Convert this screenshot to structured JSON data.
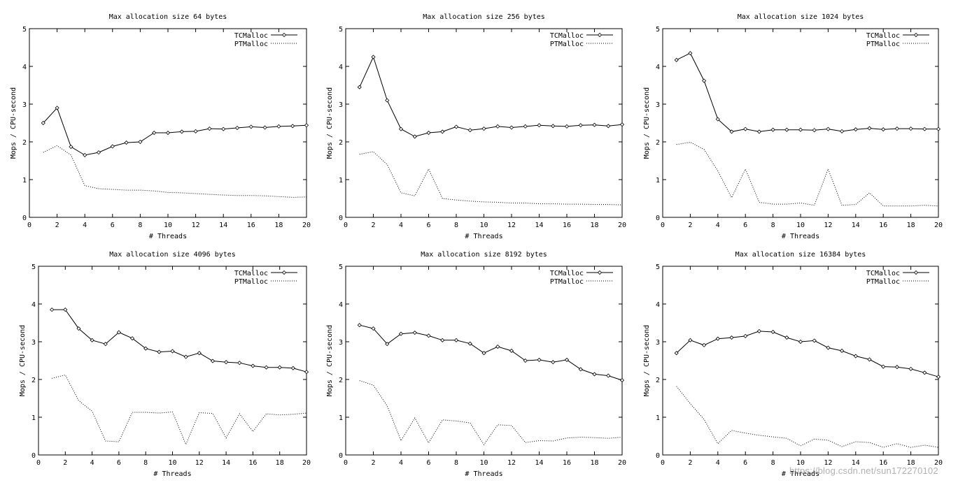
{
  "watermark": "https://blog.csdn.net/sun172270102",
  "chart_data": [
    {
      "type": "line",
      "title": "Max allocation size 64 bytes",
      "xlabel": "# Threads",
      "ylabel": "Mops / CPU-second",
      "xlim": [
        0,
        20
      ],
      "ylim": [
        0,
        5
      ],
      "xticks": [
        0,
        2,
        4,
        6,
        8,
        10,
        12,
        14,
        16,
        18,
        20
      ],
      "yticks": [
        0,
        1,
        2,
        3,
        4,
        5
      ],
      "legend": "top-right",
      "x": [
        1,
        2,
        3,
        4,
        5,
        6,
        7,
        8,
        9,
        10,
        11,
        12,
        13,
        14,
        15,
        16,
        17,
        18,
        19,
        20
      ],
      "series": [
        {
          "name": "TCMalloc",
          "style": "solid-diamond",
          "values": [
            2.5,
            2.9,
            1.87,
            1.65,
            1.72,
            1.88,
            1.98,
            2.0,
            2.24,
            2.24,
            2.27,
            2.28,
            2.35,
            2.34,
            2.37,
            2.4,
            2.38,
            2.41,
            2.42,
            2.44
          ]
        },
        {
          "name": "PTMalloc",
          "style": "dotted",
          "values": [
            1.72,
            1.9,
            1.65,
            0.84,
            0.76,
            0.74,
            0.72,
            0.72,
            0.7,
            0.66,
            0.65,
            0.63,
            0.61,
            0.59,
            0.58,
            0.58,
            0.57,
            0.55,
            0.53,
            0.54
          ]
        }
      ]
    },
    {
      "type": "line",
      "title": "Max allocation size 256 bytes",
      "xlabel": "# Threads",
      "ylabel": "Mops / CPU-second",
      "xlim": [
        0,
        20
      ],
      "ylim": [
        0,
        5
      ],
      "xticks": [
        0,
        2,
        4,
        6,
        8,
        10,
        12,
        14,
        16,
        18,
        20
      ],
      "yticks": [
        0,
        1,
        2,
        3,
        4,
        5
      ],
      "legend": "top-right",
      "x": [
        1,
        2,
        3,
        4,
        5,
        6,
        7,
        8,
        9,
        10,
        11,
        12,
        13,
        14,
        15,
        16,
        17,
        18,
        19,
        20
      ],
      "series": [
        {
          "name": "TCMalloc",
          "style": "solid-diamond",
          "values": [
            3.45,
            4.25,
            3.1,
            2.34,
            2.14,
            2.24,
            2.27,
            2.4,
            2.31,
            2.35,
            2.41,
            2.38,
            2.41,
            2.44,
            2.42,
            2.41,
            2.44,
            2.45,
            2.42,
            2.46
          ]
        },
        {
          "name": "PTMalloc",
          "style": "dotted",
          "values": [
            1.67,
            1.74,
            1.4,
            0.65,
            0.57,
            1.28,
            0.5,
            0.46,
            0.43,
            0.41,
            0.4,
            0.38,
            0.38,
            0.36,
            0.36,
            0.35,
            0.35,
            0.34,
            0.34,
            0.33
          ]
        }
      ]
    },
    {
      "type": "line",
      "title": "Max allocation size 1024 bytes",
      "xlabel": "# Threads",
      "ylabel": "Mops / CPU-second",
      "xlim": [
        0,
        20
      ],
      "ylim": [
        0,
        5
      ],
      "xticks": [
        0,
        2,
        4,
        6,
        8,
        10,
        12,
        14,
        16,
        18,
        20
      ],
      "yticks": [
        0,
        1,
        2,
        3,
        4,
        5
      ],
      "legend": "top-right",
      "x": [
        1,
        2,
        3,
        4,
        5,
        6,
        7,
        8,
        9,
        10,
        11,
        12,
        13,
        14,
        15,
        16,
        17,
        18,
        19,
        20
      ],
      "series": [
        {
          "name": "TCMalloc",
          "style": "solid-diamond",
          "values": [
            4.17,
            4.35,
            3.62,
            2.6,
            2.27,
            2.34,
            2.27,
            2.32,
            2.32,
            2.32,
            2.31,
            2.34,
            2.28,
            2.33,
            2.36,
            2.33,
            2.35,
            2.35,
            2.34,
            2.34
          ]
        },
        {
          "name": "PTMalloc",
          "style": "dotted",
          "values": [
            1.93,
            1.99,
            1.8,
            1.23,
            0.52,
            1.28,
            0.4,
            0.35,
            0.35,
            0.38,
            0.32,
            1.28,
            0.32,
            0.34,
            0.65,
            0.3,
            0.3,
            0.3,
            0.32,
            0.3
          ]
        }
      ]
    },
    {
      "type": "line",
      "title": "Max allocation size 4096 bytes",
      "xlabel": "# Threads",
      "ylabel": "Mops / CPU-second",
      "xlim": [
        0,
        20
      ],
      "ylim": [
        0,
        5
      ],
      "xticks": [
        0,
        2,
        4,
        6,
        8,
        10,
        12,
        14,
        16,
        18,
        20
      ],
      "yticks": [
        0,
        1,
        2,
        3,
        4,
        5
      ],
      "legend": "top-right",
      "x": [
        1,
        2,
        3,
        4,
        5,
        6,
        7,
        8,
        9,
        10,
        11,
        12,
        13,
        14,
        15,
        16,
        17,
        18,
        19,
        20
      ],
      "series": [
        {
          "name": "TCMalloc",
          "style": "solid-diamond",
          "values": [
            3.85,
            3.85,
            3.35,
            3.04,
            2.94,
            3.25,
            3.09,
            2.82,
            2.73,
            2.75,
            2.6,
            2.7,
            2.49,
            2.46,
            2.44,
            2.36,
            2.32,
            2.32,
            2.3,
            2.2
          ]
        },
        {
          "name": "PTMalloc",
          "style": "dotted",
          "values": [
            2.03,
            2.12,
            1.44,
            1.16,
            0.37,
            0.35,
            1.13,
            1.13,
            1.11,
            1.14,
            0.28,
            1.12,
            1.1,
            0.45,
            1.09,
            0.62,
            1.09,
            1.06,
            1.08,
            1.11
          ]
        }
      ]
    },
    {
      "type": "line",
      "title": "Max allocation size 8192 bytes",
      "xlabel": "# Threads",
      "ylabel": "Mops / CPU-second",
      "xlim": [
        0,
        20
      ],
      "ylim": [
        0,
        5
      ],
      "xticks": [
        0,
        2,
        4,
        6,
        8,
        10,
        12,
        14,
        16,
        18,
        20
      ],
      "yticks": [
        0,
        1,
        2,
        3,
        4,
        5
      ],
      "legend": "top-right",
      "x": [
        1,
        2,
        3,
        4,
        5,
        6,
        7,
        8,
        9,
        10,
        11,
        12,
        13,
        14,
        15,
        16,
        17,
        18,
        19,
        20
      ],
      "series": [
        {
          "name": "TCMalloc",
          "style": "solid-diamond",
          "values": [
            3.44,
            3.35,
            2.94,
            3.21,
            3.24,
            3.16,
            3.04,
            3.04,
            2.95,
            2.7,
            2.87,
            2.76,
            2.5,
            2.52,
            2.46,
            2.52,
            2.27,
            2.14,
            2.1,
            1.98
          ]
        },
        {
          "name": "PTMalloc",
          "style": "dotted",
          "values": [
            1.97,
            1.85,
            1.3,
            0.38,
            0.98,
            0.32,
            0.93,
            0.9,
            0.85,
            0.27,
            0.8,
            0.78,
            0.33,
            0.38,
            0.37,
            0.45,
            0.47,
            0.46,
            0.44,
            0.47
          ]
        }
      ]
    },
    {
      "type": "line",
      "title": "Max allocation size 16384 bytes",
      "xlabel": "# Threads",
      "ylabel": "Mops / CPU-second",
      "xlim": [
        0,
        20
      ],
      "ylim": [
        0,
        5
      ],
      "xticks": [
        0,
        2,
        4,
        6,
        8,
        10,
        12,
        14,
        16,
        18,
        20
      ],
      "yticks": [
        0,
        1,
        2,
        3,
        4,
        5
      ],
      "legend": "top-right",
      "x": [
        1,
        2,
        3,
        4,
        5,
        6,
        7,
        8,
        9,
        10,
        11,
        12,
        13,
        14,
        15,
        16,
        17,
        18,
        19,
        20
      ],
      "series": [
        {
          "name": "TCMalloc",
          "style": "solid-diamond",
          "values": [
            2.7,
            3.04,
            2.91,
            3.08,
            3.11,
            3.15,
            3.28,
            3.26,
            3.11,
            3.0,
            3.03,
            2.84,
            2.76,
            2.62,
            2.53,
            2.34,
            2.33,
            2.28,
            2.18,
            2.07
          ]
        },
        {
          "name": "PTMalloc",
          "style": "dotted",
          "values": [
            1.82,
            1.36,
            0.94,
            0.3,
            0.65,
            0.58,
            0.52,
            0.48,
            0.44,
            0.24,
            0.42,
            0.39,
            0.22,
            0.35,
            0.33,
            0.2,
            0.3,
            0.2,
            0.26,
            0.2
          ]
        }
      ]
    }
  ]
}
